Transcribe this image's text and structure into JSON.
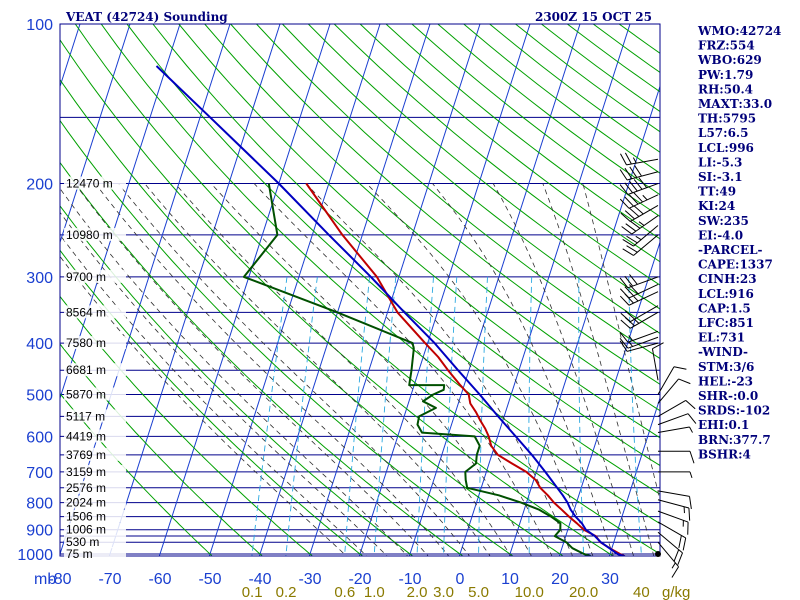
{
  "header": {
    "title": "VEAT (42724) Sounding",
    "datetime": "2300Z 15 OCT 25"
  },
  "colors": {
    "isobar": "#00008b",
    "isotherm": "#1a3fd0",
    "dry_adiabat": "#00a000",
    "moist_adiabat": "#303030",
    "mixing_ratio": "#2aa8e0",
    "temperature": "#c00000",
    "dewpoint": "#005000",
    "parcel": "#0000c0",
    "index_text": "#00007a"
  },
  "axis_labels": {
    "pressure_unit": "mb",
    "mixing_unit": "g/kg"
  },
  "indices": [
    "WMO:42724",
    "FRZ:554",
    "WBO:629",
    "PW:1.79",
    "RH:50.4",
    "MAXT:33.0",
    "TH:5795",
    "L57:6.5",
    "LCL:996",
    "LI:-5.3",
    "SI:-3.1",
    "TT:49",
    "KI:24",
    "SW:235",
    "EI:-4.0",
    "-PARCEL-",
    "CAPE:1337",
    "CINH:23",
    "LCL:916",
    "CAP:1.5",
    "LFC:851",
    "EL:731",
    "-WIND-",
    "STM:3/6",
    "HEL:-23",
    "SHR-:0.0",
    "SRDS:-102",
    "EHI:0.1",
    "BRN:377.7",
    "BSHR:4"
  ],
  "chart_data": {
    "type": "line",
    "title": "VEAT (42724) Sounding",
    "subtitle": "2300Z 15 OCT 25",
    "xlabel": "",
    "ylabel": "mb",
    "x_unit": "°C",
    "xlim": [
      -80,
      40
    ],
    "ylim": [
      1000,
      100
    ],
    "y_scale": "log",
    "grid": true,
    "legend": "none",
    "pressure_ticks": [
      100,
      200,
      300,
      400,
      500,
      600,
      700,
      800,
      900,
      1000
    ],
    "temperature_ticks": [
      -80,
      -70,
      -60,
      -50,
      -40,
      -30,
      -20,
      -10,
      0,
      10,
      20,
      30
    ],
    "temperature_tick_labels": [
      "-80",
      "-70",
      "-60",
      "-50",
      "-40",
      "-30",
      "-20",
      "-10",
      "0",
      "10",
      "20",
      "30"
    ],
    "mixing_ratio_labels": [
      "0.1",
      "0.2",
      "0.6",
      "1.0",
      "2.0",
      "3.0",
      "5.0",
      "10.0",
      "20.0",
      "40"
    ],
    "mixing_ratio_values": [
      0.1,
      0.2,
      0.6,
      1.0,
      2.0,
      3.0,
      5.0,
      10.0,
      20.0,
      40.0
    ],
    "heights": [
      {
        "label": "12470 m",
        "pressure": 200
      },
      {
        "label": "10980 m",
        "pressure": 250
      },
      {
        "label": "9700 m",
        "pressure": 300
      },
      {
        "label": "8564 m",
        "pressure": 350
      },
      {
        "label": "7580 m",
        "pressure": 400
      },
      {
        "label": "6681 m",
        "pressure": 450
      },
      {
        "label": "5870 m",
        "pressure": 500
      },
      {
        "label": "5117 m",
        "pressure": 550
      },
      {
        "label": "4419 m",
        "pressure": 600
      },
      {
        "label": "3769 m",
        "pressure": 650
      },
      {
        "label": "3159 m",
        "pressure": 700
      },
      {
        "label": "2576 m",
        "pressure": 750
      },
      {
        "label": "2024 m",
        "pressure": 800
      },
      {
        "label": "1506 m",
        "pressure": 850
      },
      {
        "label": "1006 m",
        "pressure": 900
      },
      {
        "label": "530 m",
        "pressure": 950
      },
      {
        "label": "75 m",
        "pressure": 1000
      }
    ],
    "series": [
      {
        "name": "Temperature",
        "pressure": [
          1010,
          1000,
          980,
          950,
          925,
          900,
          875,
          850,
          825,
          800,
          775,
          750,
          725,
          700,
          675,
          650,
          625,
          600,
          580,
          560,
          540,
          520,
          500,
          480,
          450,
          425,
          400,
          350,
          300,
          250,
          200
        ],
        "temp": [
          33.1,
          32.0,
          30.0,
          27.3,
          26.0,
          23.2,
          21.4,
          19.4,
          17.5,
          15.5,
          13.8,
          11.8,
          10.4,
          8.0,
          4.6,
          1.2,
          -0.7,
          -1.8,
          -3.0,
          -4.5,
          -5.9,
          -7.6,
          -8.5,
          -10.8,
          -14.2,
          -17.0,
          -20.5,
          -28.0,
          -34.4,
          -44.0,
          -54.5
        ]
      },
      {
        "name": "Dewpoint",
        "pressure": [
          1010,
          1000,
          975,
          950,
          925,
          900,
          875,
          850,
          825,
          800,
          775,
          750,
          725,
          700,
          675,
          650,
          625,
          600,
          590,
          570,
          550,
          530,
          515,
          500,
          490,
          480,
          480,
          450,
          410,
          400,
          350,
          300,
          250,
          200
        ],
        "temp": [
          26.4,
          24.8,
          22.1,
          20.5,
          17.8,
          18.5,
          18.1,
          15.8,
          13.0,
          8.9,
          4.0,
          -2.8,
          -3.6,
          -4.2,
          -2.6,
          -3.0,
          -3.0,
          -4.6,
          -15.4,
          -16.8,
          -17.0,
          -14.2,
          -17.2,
          -15.6,
          -13.8,
          -14.0,
          -21.0,
          -21.5,
          -22.4,
          -23.0,
          -40.0,
          -61.0,
          -57.0,
          -62.0
        ]
      },
      {
        "name": "Parcel",
        "pressure": [
          1010,
          1000,
          975,
          950,
          925,
          900,
          875,
          850,
          825,
          800,
          775,
          750,
          700,
          650,
          600,
          550,
          500,
          450,
          400,
          350,
          300,
          250,
          200,
          150,
          120
        ],
        "temp": [
          33.1,
          31.5,
          29.5,
          27.4,
          25.8,
          23.6,
          22.4,
          20.7,
          19.3,
          18.2,
          16.8,
          15.2,
          11.8,
          8.0,
          3.6,
          -1.2,
          -6.3,
          -12.2,
          -18.6,
          -26.6,
          -35.6,
          -46.7,
          -60.0,
          -78.0,
          -92.0
        ]
      }
    ],
    "winds": [
      {
        "pressure": 180,
        "direction": 260,
        "speed": 25
      },
      {
        "pressure": 190,
        "direction": 255,
        "speed": 40
      },
      {
        "pressure": 200,
        "direction": 250,
        "speed": 50
      },
      {
        "pressure": 210,
        "direction": 245,
        "speed": 45
      },
      {
        "pressure": 220,
        "direction": 240,
        "speed": 40
      },
      {
        "pressure": 230,
        "direction": 235,
        "speed": 35
      },
      {
        "pressure": 240,
        "direction": 230,
        "speed": 25
      },
      {
        "pressure": 250,
        "direction": 230,
        "speed": 20
      },
      {
        "pressure": 300,
        "direction": 250,
        "speed": 30
      },
      {
        "pressure": 310,
        "direction": 245,
        "speed": 30
      },
      {
        "pressure": 320,
        "direction": 245,
        "speed": 25
      },
      {
        "pressure": 340,
        "direction": 240,
        "speed": 20
      },
      {
        "pressure": 350,
        "direction": 240,
        "speed": 25
      },
      {
        "pressure": 380,
        "direction": 250,
        "speed": 15
      },
      {
        "pressure": 390,
        "direction": 250,
        "speed": 15
      },
      {
        "pressure": 400,
        "direction": 255,
        "speed": 10
      },
      {
        "pressure": 470,
        "direction": 350,
        "speed": 10
      },
      {
        "pressure": 500,
        "direction": 30,
        "speed": 10
      },
      {
        "pressure": 520,
        "direction": 40,
        "speed": 10
      },
      {
        "pressure": 550,
        "direction": 60,
        "speed": 10
      },
      {
        "pressure": 570,
        "direction": 70,
        "speed": 10
      },
      {
        "pressure": 590,
        "direction": 80,
        "speed": 5
      },
      {
        "pressure": 640,
        "direction": 90,
        "speed": 10
      },
      {
        "pressure": 700,
        "direction": 90,
        "speed": 5
      },
      {
        "pressure": 760,
        "direction": 100,
        "speed": 10
      },
      {
        "pressure": 790,
        "direction": 105,
        "speed": 15
      },
      {
        "pressure": 830,
        "direction": 110,
        "speed": 15
      },
      {
        "pressure": 870,
        "direction": 120,
        "speed": 20
      },
      {
        "pressure": 910,
        "direction": 130,
        "speed": 20
      },
      {
        "pressure": 950,
        "direction": 140,
        "speed": 15
      },
      {
        "pressure": 1000,
        "direction": 0,
        "speed": 0
      }
    ]
  }
}
